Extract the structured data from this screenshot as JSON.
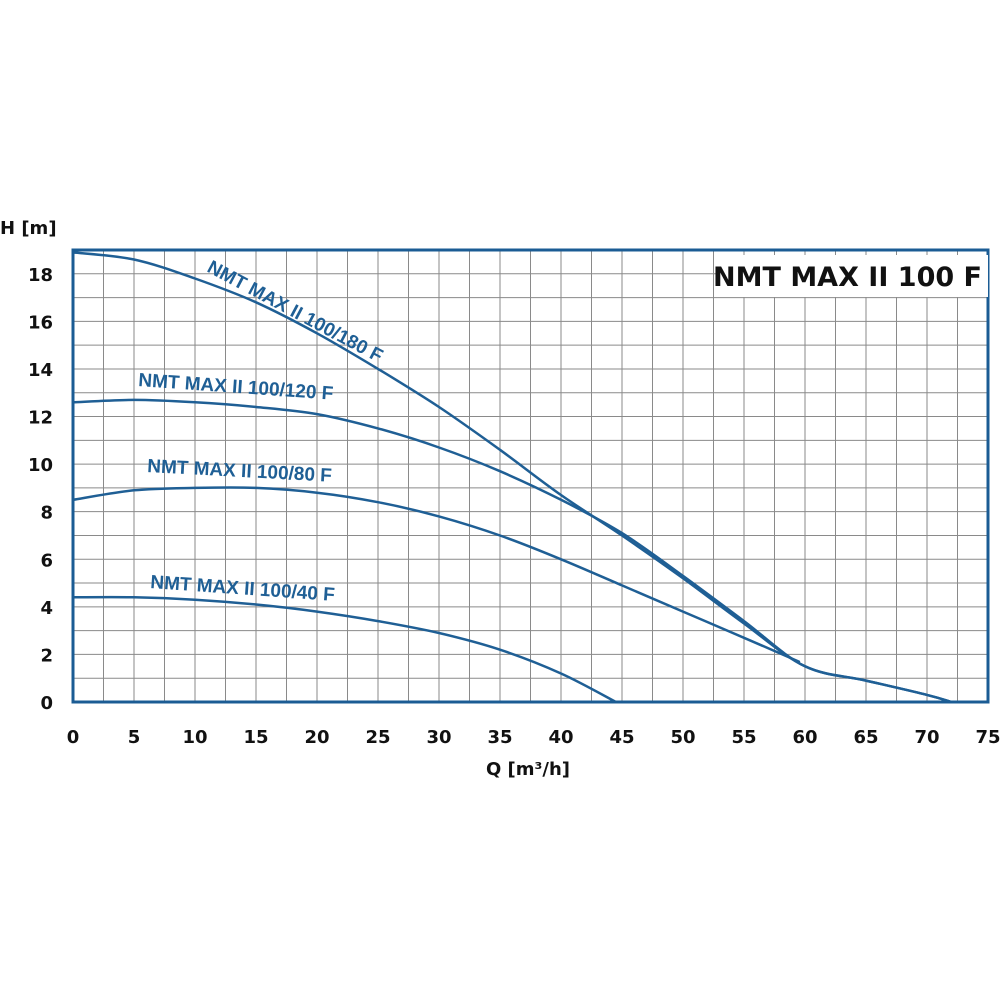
{
  "chart_data": {
    "type": "line",
    "title": "NMT MAX II 100 F",
    "xlabel": "Q [m³/h]",
    "ylabel": "H [m]",
    "xlim": [
      0,
      75
    ],
    "ylim": [
      0,
      19
    ],
    "grid": true,
    "x_ticks": [
      "0",
      "5",
      "10",
      "15",
      "20",
      "25",
      "30",
      "35",
      "40",
      "45",
      "50",
      "55",
      "60",
      "65",
      "70",
      "75"
    ],
    "y_ticks": [
      "0",
      "2",
      "4",
      "6",
      "8",
      "10",
      "12",
      "14",
      "16",
      "18"
    ],
    "colors": {
      "curve": "#1f5f95",
      "frame": "#1b5c94",
      "grid": "#8a8a8a"
    },
    "series": [
      {
        "name": "NMT MAX II 100/180 F",
        "x": [
          0,
          5,
          10,
          15,
          20,
          25,
          30,
          35,
          40,
          45,
          50,
          55,
          60,
          65,
          70,
          72
        ],
        "y": [
          18.9,
          18.6,
          17.8,
          16.8,
          15.5,
          14.0,
          12.4,
          10.6,
          8.7,
          7.0,
          5.2,
          3.3,
          1.5,
          0.9,
          0.3,
          0
        ]
      },
      {
        "name": "NMT MAX II 100/120 F",
        "x": [
          0,
          5,
          10,
          15,
          20,
          25,
          30,
          35,
          40,
          45,
          50,
          55,
          60,
          65,
          70,
          72
        ],
        "y": [
          12.6,
          12.7,
          12.6,
          12.4,
          12.1,
          11.5,
          10.7,
          9.7,
          8.5,
          7.1,
          5.3,
          3.4,
          1.5,
          0.9,
          0.3,
          0
        ]
      },
      {
        "name": "NMT MAX II 100/80 F",
        "x": [
          0,
          5,
          10,
          15,
          20,
          25,
          30,
          35,
          40,
          45,
          50,
          55,
          59.5
        ],
        "y": [
          8.5,
          8.9,
          9.0,
          9.0,
          8.8,
          8.4,
          7.8,
          7.0,
          6.0,
          4.9,
          3.8,
          2.7,
          1.7
        ]
      },
      {
        "name": "NMT MAX II 100/40 F",
        "x": [
          0,
          5,
          10,
          15,
          20,
          25,
          30,
          35,
          40,
          44.5
        ],
        "y": [
          4.4,
          4.4,
          4.3,
          4.1,
          3.8,
          3.4,
          2.9,
          2.2,
          1.2,
          0
        ]
      }
    ],
    "curve_labels": [
      {
        "text": "NMT MAX II 100/180 F",
        "series": "NMT MAX II 100/180 F"
      },
      {
        "text": "NMT  MAX II 100/120 F",
        "series": "NMT MAX II 100/120 F"
      },
      {
        "text": "NMT  MAX II 100/80 F",
        "series": "NMT MAX II 100/80 F"
      },
      {
        "text": "NMT  MAX II 100/40 F",
        "series": "NMT MAX II 100/40 F"
      }
    ]
  }
}
